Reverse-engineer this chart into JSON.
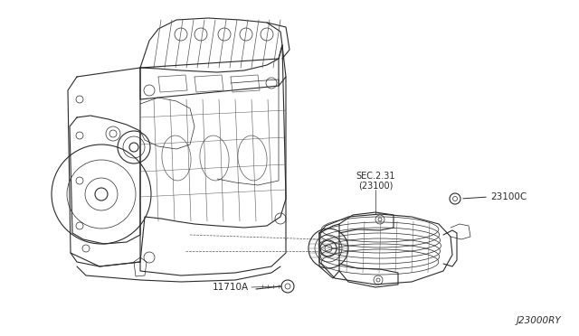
{
  "bg_color": "#ffffff",
  "line_color": "#2a2a2a",
  "line_color_light": "#555555",
  "labels": {
    "sec": "SEC.2.31\n(23100)",
    "part1": "23100C",
    "part2": "11710A",
    "ref": "J23000RY"
  },
  "figsize": [
    6.4,
    3.72
  ],
  "dpi": 100
}
